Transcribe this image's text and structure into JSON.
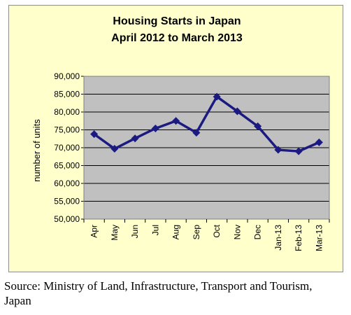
{
  "chart_data": {
    "type": "line",
    "title_lines": [
      "Housing Starts in Japan",
      "April 2012  to March 2013"
    ],
    "xlabel": "",
    "ylabel": "number of units",
    "categories": [
      "Apr",
      "May",
      "Jun",
      "Jul",
      "Aug",
      "Sep",
      "Oct",
      "Nov",
      "Dec",
      "Jan-13",
      "Feb-13",
      "Mar-13"
    ],
    "series": [
      {
        "values": [
          73800,
          69700,
          72600,
          75400,
          77500,
          74200,
          84300,
          80200,
          76000,
          69400,
          69000,
          71500
        ]
      }
    ],
    "ylim": [
      50000,
      90000
    ],
    "yticks": [
      50000,
      55000,
      60000,
      65000,
      70000,
      75000,
      80000,
      85000,
      90000
    ],
    "ytick_labels": [
      "50,000",
      "55,000",
      "60,000",
      "65,000",
      "70,000",
      "75,000",
      "80,000",
      "85,000",
      "90,000"
    ],
    "grid": true,
    "legend": "none",
    "colors": {
      "line": "#1a1a80",
      "plot_bg": "#c0c0c0",
      "frame_bg": "#ffffcc",
      "gridline": "#000000"
    }
  },
  "source": {
    "prefix": "Source:",
    "text": " Ministry of Land, Infrastructure, Transport and Tourism, Japan"
  }
}
